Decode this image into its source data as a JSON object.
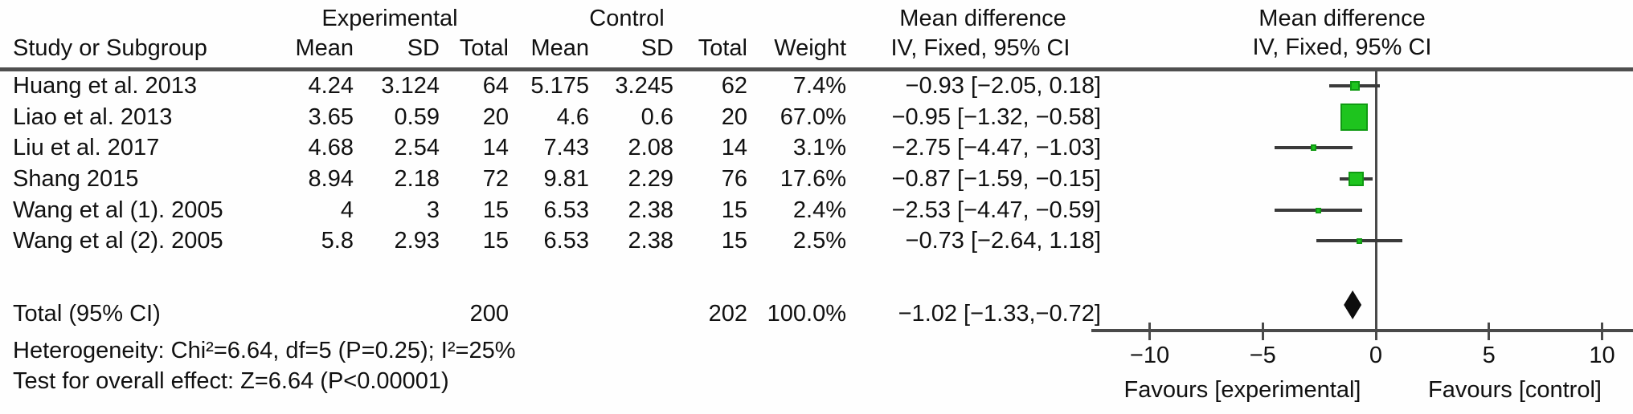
{
  "header": {
    "group_experimental": "Experimental",
    "group_control": "Control",
    "group_mean_difference": "Mean difference",
    "group_mean_difference_plot": "Mean difference",
    "study": "Study or Subgroup",
    "exp_mean": "Mean",
    "exp_sd": "SD",
    "exp_total": "Total",
    "ctl_mean": "Mean",
    "ctl_sd": "SD",
    "ctl_total": "Total",
    "weight": "Weight",
    "iv_fixed": "IV, Fixed, 95% CI",
    "iv_fixed_plot": "IV, Fixed, 95% CI"
  },
  "rows": [
    {
      "study": "Huang et al. 2013",
      "exp_mean": "4.24",
      "exp_sd": "3.124",
      "exp_total": "64",
      "ctl_mean": "5.175",
      "ctl_sd": "3.245",
      "ctl_total": "62",
      "weight": "7.4%",
      "ci": "−0.93 [−2.05, 0.18]"
    },
    {
      "study": "Liao et al. 2013",
      "exp_mean": "3.65",
      "exp_sd": "0.59",
      "exp_total": "20",
      "ctl_mean": "4.6",
      "ctl_sd": "0.6",
      "ctl_total": "20",
      "weight": "67.0%",
      "ci": "−0.95 [−1.32, −0.58]"
    },
    {
      "study": "Liu et al. 2017",
      "exp_mean": "4.68",
      "exp_sd": "2.54",
      "exp_total": "14",
      "ctl_mean": "7.43",
      "ctl_sd": "2.08",
      "ctl_total": "14",
      "weight": "3.1%",
      "ci": "−2.75 [−4.47, −1.03]"
    },
    {
      "study": "Shang 2015",
      "exp_mean": "8.94",
      "exp_sd": "2.18",
      "exp_total": "72",
      "ctl_mean": "9.81",
      "ctl_sd": "2.29",
      "ctl_total": "76",
      "weight": "17.6%",
      "ci": "−0.87 [−1.59, −0.15]"
    },
    {
      "study": "Wang et al (1). 2005",
      "exp_mean": "4",
      "exp_sd": "3",
      "exp_total": "15",
      "ctl_mean": "6.53",
      "ctl_sd": "2.38",
      "ctl_total": "15",
      "weight": "2.4%",
      "ci": "−2.53 [−4.47, −0.59]"
    },
    {
      "study": "Wang et al (2). 2005",
      "exp_mean": "5.8",
      "exp_sd": "2.93",
      "exp_total": "15",
      "ctl_mean": "6.53",
      "ctl_sd": "2.38",
      "ctl_total": "15",
      "weight": "2.5%",
      "ci": "−0.73 [−2.64, 1.18]"
    }
  ],
  "total_row": {
    "label": "Total (95% CI)",
    "exp_total": "200",
    "ctl_total": "202",
    "weight": "100.0%",
    "ci": "−1.02 [−1.33,−0.72]"
  },
  "footer": {
    "heterogeneity": "Heterogeneity: Chi²=6.64, df=5 (P=0.25); I²=25%",
    "overall_effect": "Test for overall effect: Z=6.64 (P<0.00001)"
  },
  "chart_data": {
    "type": "forest",
    "effect_measure": "Mean difference, IV, Fixed, 95% CI",
    "xlim": [
      -10,
      10
    ],
    "ticks": [
      -10,
      -5,
      0,
      5,
      10
    ],
    "tick_labels": [
      "−10",
      "−5",
      "0",
      "5",
      "10"
    ],
    "favours_left": "Favours [experimental]",
    "favours_right": "Favours [control]",
    "marker_color": "#1ec41e",
    "line_color": "#3a3a3a",
    "studies": [
      {
        "name": "Huang et al. 2013",
        "md": -0.93,
        "ci_low": -2.05,
        "ci_high": 0.18,
        "weight_pct": 7.4
      },
      {
        "name": "Liao et al. 2013",
        "md": -0.95,
        "ci_low": -1.32,
        "ci_high": -0.58,
        "weight_pct": 67.0
      },
      {
        "name": "Liu et al. 2017",
        "md": -2.75,
        "ci_low": -4.47,
        "ci_high": -1.03,
        "weight_pct": 3.1
      },
      {
        "name": "Shang 2015",
        "md": -0.87,
        "ci_low": -1.59,
        "ci_high": -0.15,
        "weight_pct": 17.6
      },
      {
        "name": "Wang et al (1). 2005",
        "md": -2.53,
        "ci_low": -4.47,
        "ci_high": -0.59,
        "weight_pct": 2.4
      },
      {
        "name": "Wang et al (2). 2005",
        "md": -0.73,
        "ci_low": -2.64,
        "ci_high": 1.18,
        "weight_pct": 2.5
      }
    ],
    "total": {
      "name": "Total (95% CI)",
      "md": -1.02,
      "ci_low": -1.33,
      "ci_high": -0.72
    }
  }
}
